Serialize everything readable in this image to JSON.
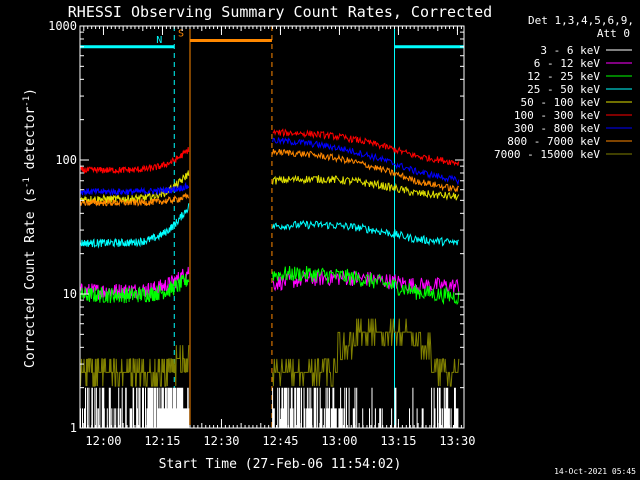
{
  "chart_data": {
    "type": "line",
    "title": "RHESSI Observing Summary Count Rates, Corrected",
    "ylabel_pre": "Corrected Count Rate (s",
    "ylabel_sup1": "-1",
    "ylabel_mid": " detector",
    "ylabel_sup2": "-1",
    "ylabel_post": ")",
    "xlabel": "Start Time (27-Feb-06 11:54:02)",
    "timestamp": "14-Oct-2021 05:45",
    "y_scale": "log",
    "ylim": [
      1,
      1000
    ],
    "xlim": [
      "11:54:02",
      "13:31:40"
    ],
    "y_ticks": [
      "1",
      "10",
      "100",
      "1000"
    ],
    "x_ticks": [
      "12:00",
      "12:15",
      "12:30",
      "12:45",
      "13:00",
      "13:15",
      "13:30"
    ],
    "legend": {
      "header1": "Det 1,3,4,5,6,9,",
      "header2": "Att 0",
      "placement": "right"
    },
    "series": [
      {
        "name": "3 - 6 keV",
        "color": "#ffffff",
        "pre": {
          "start": 0.0,
          "end": 0.0
        },
        "post": {
          "start": 0.0,
          "end": 0.0
        },
        "noise": "binary"
      },
      {
        "name": "6 - 12 keV",
        "color": "#ff00ff",
        "pre": {
          "start": 10.5,
          "end": 15.0
        },
        "post": {
          "start": 12.0,
          "end": 11.5
        },
        "noise": 0.06
      },
      {
        "name": "12 - 25 keV",
        "color": "#00ff00",
        "pre": {
          "start": 9.8,
          "end": 13.0
        },
        "post": {
          "start": 14.0,
          "end": 9.5
        },
        "noise": 0.06
      },
      {
        "name": "25 - 50 keV",
        "color": "#00ffff",
        "pre": {
          "start": 24,
          "end": 45
        },
        "post": {
          "start": 32,
          "end": 24
        },
        "noise": 0.03
      },
      {
        "name": "50 - 100 keV",
        "color": "#e0e000",
        "pre": {
          "start": 51,
          "end": 80
        },
        "post": {
          "start": 70,
          "end": 53
        },
        "noise": 0.03
      },
      {
        "name": "100 - 300 keV",
        "color": "#ff0000",
        "pre": {
          "start": 84,
          "end": 120
        },
        "post": {
          "start": 160,
          "end": 95
        },
        "noise": 0.025
      },
      {
        "name": "300 - 800 keV",
        "color": "#0000ff",
        "pre": {
          "start": 58,
          "end": 64
        },
        "post": {
          "start": 140,
          "end": 70
        },
        "noise": 0.025
      },
      {
        "name": "800 - 7000 keV",
        "color": "#ff8800",
        "pre": {
          "start": 48,
          "end": 54
        },
        "post": {
          "start": 115,
          "end": 60
        },
        "noise": 0.025
      },
      {
        "name": "7000 - 15000 keV",
        "color": "#808000",
        "pre": {
          "start": 2.6,
          "end": 3.3
        },
        "post": {
          "start": 2.6,
          "end": 2.6
        },
        "noise": "step"
      }
    ],
    "segments": {
      "pre": [
        "11:54:02",
        "12:21:40"
      ],
      "gap": [
        "12:21:40",
        "12:43:00"
      ],
      "post": [
        "12:43:00",
        "13:30:20"
      ]
    },
    "flags": [
      {
        "label": "N",
        "color": "#00ffff",
        "start": "11:54:02",
        "end": "12:18:00",
        "level": 700
      },
      {
        "label": "",
        "color": "#00ffff",
        "start": "13:14:00",
        "end": "13:31:40",
        "level": 700
      },
      {
        "label": "S",
        "color": "#ff8800",
        "start": "12:22:00",
        "end": "12:42:50",
        "level": 780
      }
    ],
    "vlines": [
      {
        "time": "11:54:02",
        "color": "#00ffff",
        "style": "solid"
      },
      {
        "time": "12:18:00",
        "color": "#00ffff",
        "style": "dashed"
      },
      {
        "time": "12:22:00",
        "color": "#ff8800",
        "style": "solid"
      },
      {
        "time": "12:42:50",
        "color": "#ff8800",
        "style": "dashed"
      },
      {
        "time": "13:14:00",
        "color": "#00ffff",
        "style": "solid"
      },
      {
        "time": "13:31:40",
        "color": "#00ffff",
        "style": "dashed"
      }
    ]
  }
}
